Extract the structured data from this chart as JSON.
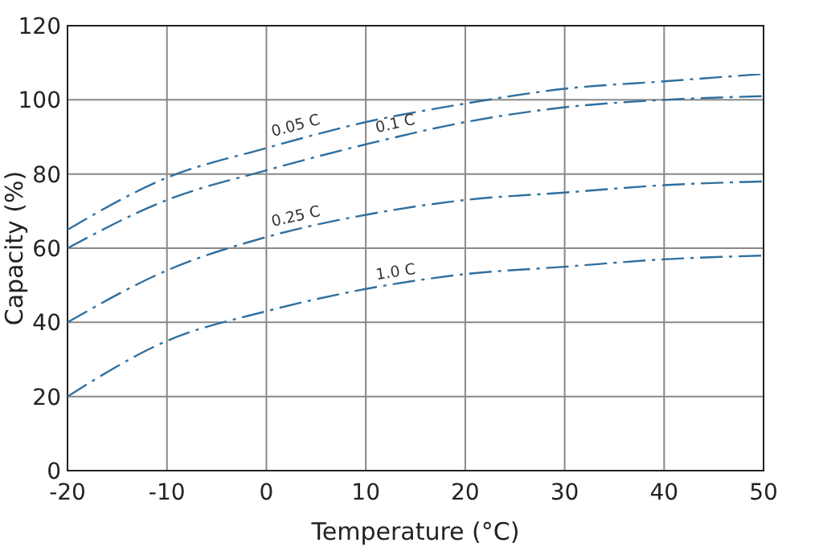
{
  "chart_data": {
    "type": "line",
    "xlabel": "Temperature (°C)",
    "ylabel": "Capacity (%)",
    "x": [
      -20,
      -10,
      0,
      10,
      20,
      30,
      40,
      50
    ],
    "series": [
      {
        "name": "0.05 C",
        "color": "#2f6f9f",
        "values": [
          65,
          79,
          87,
          94,
          99,
          103,
          105,
          107
        ]
      },
      {
        "name": "0.1 C",
        "color": "#2f6f9f",
        "values": [
          60,
          73,
          81,
          88,
          94,
          98,
          100,
          101
        ]
      },
      {
        "name": "0.25 C",
        "color": "#2f6f9f",
        "values": [
          40,
          54,
          63,
          69,
          73,
          75,
          77,
          78
        ]
      },
      {
        "name": "1.0 C",
        "color": "#2f6f9f",
        "values": [
          20,
          35,
          43,
          49,
          53,
          55,
          57,
          58
        ]
      }
    ],
    "xlim": [
      -20,
      50
    ],
    "xticks": [
      -20,
      -10,
      0,
      10,
      20,
      30,
      40,
      50
    ],
    "ylim": [
      0,
      120
    ],
    "yticks": [
      0,
      20,
      40,
      60,
      80,
      100,
      120
    ],
    "grid": true,
    "line_style": "dashed",
    "marker": "none"
  }
}
